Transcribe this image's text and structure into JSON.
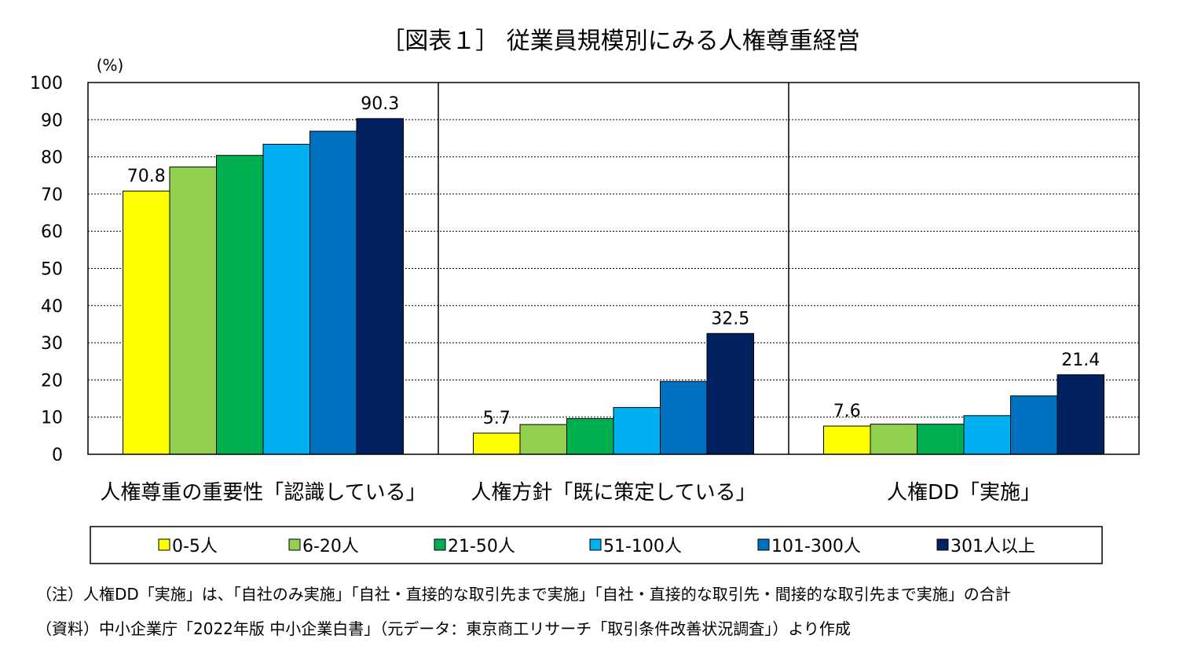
{
  "chart_data": {
    "type": "bar",
    "title": "［図表１］ 従業員規模別にみる人権尊重経営",
    "y_unit": "(%)",
    "ylim": [
      0,
      100
    ],
    "yticks": [
      0,
      10,
      20,
      30,
      40,
      50,
      60,
      70,
      80,
      90,
      100
    ],
    "grid": true,
    "legend_position": "bottom",
    "categories": [
      "人権尊重の重要性「認識している」",
      "人権方針「既に策定している」",
      "人権DD「実施」"
    ],
    "series": [
      {
        "name": "0-5人",
        "color": "#FFFF00",
        "values": [
          70.8,
          5.7,
          7.6
        ]
      },
      {
        "name": "6-20人",
        "color": "#92D050",
        "values": [
          77.3,
          8.0,
          8.1
        ]
      },
      {
        "name": "21-50人",
        "color": "#00B050",
        "values": [
          80.4,
          9.6,
          8.1
        ]
      },
      {
        "name": "51-100人",
        "color": "#00B0F0",
        "values": [
          83.4,
          12.6,
          10.4
        ]
      },
      {
        "name": "101-300人",
        "color": "#0070C0",
        "values": [
          86.9,
          19.6,
          15.7
        ]
      },
      {
        "name": "301人以上",
        "color": "#002060",
        "values": [
          90.3,
          32.5,
          21.4
        ]
      }
    ],
    "data_labels": [
      {
        "text": "70.8",
        "category": 0,
        "series": 0
      },
      {
        "text": "90.3",
        "category": 0,
        "series": 5
      },
      {
        "text": "5.7",
        "category": 1,
        "series": 0
      },
      {
        "text": "32.5",
        "category": 1,
        "series": 5
      },
      {
        "text": "7.6",
        "category": 2,
        "series": 0
      },
      {
        "text": "21.4",
        "category": 2,
        "series": 5
      }
    ]
  },
  "notes": {
    "note1": "（注）人権DD「実施」は、「自社のみ実施」「自社・直接的な取引先まで実施」「自社・直接的な取引先・間接的な取引先まで実施」の合計",
    "source": "（資料）中小企業庁「2022年版 中小企業白書」（元データ：東京商工リサーチ「取引条件改善状況調査」）より作成"
  }
}
